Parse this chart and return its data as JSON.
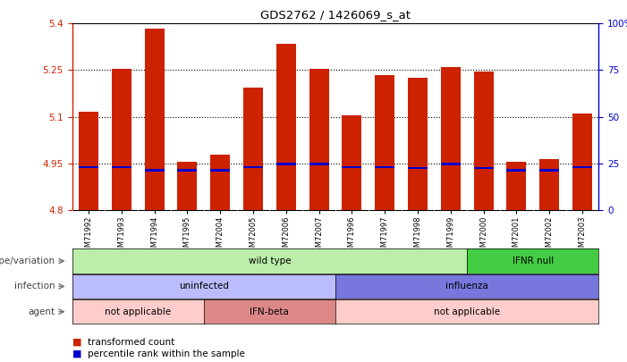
{
  "title": "GDS2762 / 1426069_s_at",
  "samples": [
    "GSM71992",
    "GSM71993",
    "GSM71994",
    "GSM71995",
    "GSM72004",
    "GSM72005",
    "GSM72006",
    "GSM72007",
    "GSM71996",
    "GSM71997",
    "GSM71998",
    "GSM71999",
    "GSM72000",
    "GSM72001",
    "GSM72002",
    "GSM72003"
  ],
  "bar_values": [
    5.115,
    5.255,
    5.385,
    4.955,
    4.978,
    5.195,
    5.335,
    5.255,
    5.105,
    5.235,
    5.225,
    5.26,
    5.245,
    4.955,
    4.965,
    5.11
  ],
  "blue_values": [
    4.938,
    4.938,
    4.928,
    4.928,
    4.928,
    4.938,
    4.948,
    4.948,
    4.938,
    4.938,
    4.935,
    4.948,
    4.935,
    4.928,
    4.928,
    4.938
  ],
  "ymin": 4.8,
  "ymax": 5.4,
  "yticks": [
    4.8,
    4.95,
    5.1,
    5.25,
    5.4
  ],
  "y2ticks": [
    0,
    25,
    50,
    75,
    100
  ],
  "bar_color": "#cc2200",
  "blue_color": "#0000cc",
  "bar_width": 0.6,
  "annotations": {
    "genotype_label": "genotype/variation",
    "infection_label": "infection",
    "agent_label": "agent",
    "wild_type": {
      "text": "wild type",
      "start": 0,
      "end": 11,
      "color": "#bbeeaa"
    },
    "ifnr_null": {
      "text": "IFNR null",
      "start": 12,
      "end": 15,
      "color": "#44cc44"
    },
    "uninfected": {
      "text": "uninfected",
      "start": 0,
      "end": 7,
      "color": "#bbbbff"
    },
    "influenza": {
      "text": "influenza",
      "start": 8,
      "end": 15,
      "color": "#7777dd"
    },
    "not_applicable_1": {
      "text": "not applicable",
      "start": 0,
      "end": 3,
      "color": "#ffcccc"
    },
    "ifn_beta": {
      "text": "IFN-beta",
      "start": 4,
      "end": 7,
      "color": "#dd8888"
    },
    "not_applicable_2": {
      "text": "not applicable",
      "start": 8,
      "end": 15,
      "color": "#ffcccc"
    }
  },
  "legend_red_text": "transformed count",
  "legend_blue_text": "percentile rank within the sample"
}
